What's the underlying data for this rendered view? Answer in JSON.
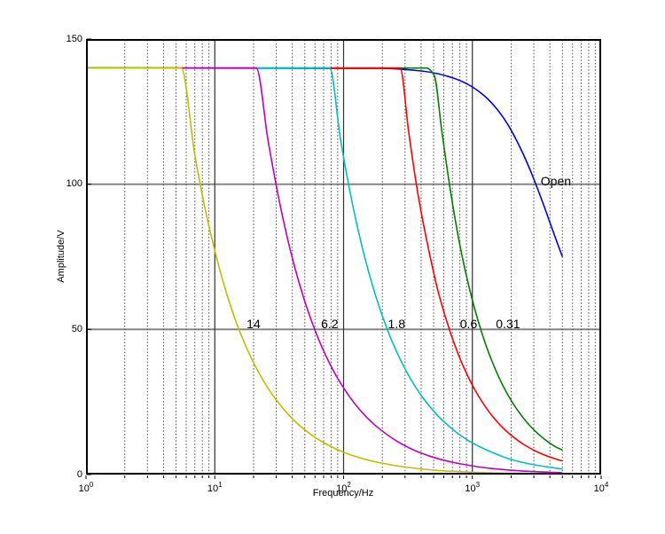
{
  "figure": {
    "background": "#ffffff",
    "frame_color": "#000000",
    "tick_color": "#000000"
  },
  "chart_data": {
    "type": "line",
    "title": "",
    "xlabel": "Frequency/Hz",
    "ylabel": "Amplitude/V",
    "x_scale": "log10",
    "xlim": [
      1,
      10000
    ],
    "ylim": [
      0,
      150
    ],
    "yticks": [
      0,
      50,
      100,
      150
    ],
    "xticks": [
      {
        "base": "10",
        "exp": "0"
      },
      {
        "base": "10",
        "exp": "1"
      },
      {
        "base": "10",
        "exp": "2"
      },
      {
        "base": "10",
        "exp": "3"
      },
      {
        "base": "10",
        "exp": "4"
      }
    ],
    "grid": {
      "x_minor_multiples": [
        2,
        3,
        4,
        5,
        6,
        7,
        8,
        9
      ],
      "x_major_lines": [
        10,
        100,
        1000
      ],
      "y_major_lines": [
        50,
        100
      ],
      "minor_color": "#4a4a4a",
      "major_color": "#303030",
      "y_line_color": "#7f7f7f"
    },
    "legend": "none",
    "series": [
      {
        "name": "Open",
        "color": "#0000ee",
        "label": {
          "text": "Open",
          "f": 4450,
          "A": 101
        },
        "points": [
          [
            1,
            140
          ],
          [
            200,
            139.9
          ],
          [
            400,
            139
          ],
          [
            520,
            138.2
          ],
          [
            650,
            137.1
          ],
          [
            800,
            135.7
          ],
          [
            1000,
            133.5
          ],
          [
            1250,
            130.3
          ],
          [
            1550,
            125.9
          ],
          [
            1900,
            120.3
          ],
          [
            2350,
            112.6
          ],
          [
            2900,
            103.4
          ],
          [
            3550,
            93.2
          ],
          [
            4300,
            82.9
          ],
          [
            5000,
            75
          ]
        ]
      },
      {
        "name": "0.31",
        "color": "#007f00",
        "label": {
          "text": "0.31",
          "f": 1890,
          "A": 52
        },
        "points": [
          [
            1,
            140
          ],
          [
            440,
            140
          ],
          [
            505,
            137.5
          ],
          [
            580,
            118
          ],
          [
            680,
            97
          ],
          [
            800,
            79
          ],
          [
            950,
            64
          ],
          [
            1150,
            50.6
          ],
          [
            1400,
            39.7
          ],
          [
            1750,
            30.1
          ],
          [
            2200,
            22.7
          ],
          [
            2800,
            16.8
          ],
          [
            3600,
            12.3
          ],
          [
            4500,
            9.4
          ],
          [
            5000,
            8.5
          ]
        ]
      },
      {
        "name": "0.6",
        "color": "#ff0000",
        "label": {
          "text": "0.6",
          "f": 935,
          "A": 52
        },
        "points": [
          [
            1,
            140
          ],
          [
            275,
            140
          ],
          [
            320,
            118
          ],
          [
            380,
            96
          ],
          [
            450,
            79
          ],
          [
            550,
            62
          ],
          [
            680,
            48.5
          ],
          [
            850,
            37.3
          ],
          [
            1100,
            27.5
          ],
          [
            1450,
            19.8
          ],
          [
            1900,
            14.4
          ],
          [
            2500,
            10.4
          ],
          [
            3300,
            7.5
          ],
          [
            4200,
            5.7
          ],
          [
            5000,
            4.7
          ]
        ]
      },
      {
        "name": "1.8",
        "color": "#00bfbf",
        "label": {
          "text": "1.8",
          "f": 258,
          "A": 52
        },
        "points": [
          [
            1,
            140
          ],
          [
            78,
            140
          ],
          [
            95,
            114.9
          ],
          [
            120,
            91
          ],
          [
            150,
            72.8
          ],
          [
            190,
            57.5
          ],
          [
            240,
            45.5
          ],
          [
            310,
            35.2
          ],
          [
            400,
            27.3
          ],
          [
            550,
            19.9
          ],
          [
            750,
            14.6
          ],
          [
            1000,
            10.9
          ],
          [
            1400,
            7.8
          ],
          [
            2000,
            5.2
          ],
          [
            3000,
            3.4
          ],
          [
            5000,
            1.9
          ]
        ]
      },
      {
        "name": "6.2",
        "color": "#bf00bf",
        "label": {
          "text": "6.2",
          "f": 78,
          "A": 52
        },
        "points": [
          [
            1,
            140
          ],
          [
            21,
            140
          ],
          [
            26,
            114.7
          ],
          [
            33,
            90.4
          ],
          [
            42,
            71
          ],
          [
            55,
            54.2
          ],
          [
            72,
            41.4
          ],
          [
            95,
            31.4
          ],
          [
            130,
            22.9
          ],
          [
            180,
            16.6
          ],
          [
            260,
            11.5
          ],
          [
            380,
            7.8
          ],
          [
            560,
            5.3
          ],
          [
            850,
            3.5
          ],
          [
            1400,
            2.1
          ],
          [
            2500,
            1.2
          ],
          [
            5000,
            0.6
          ]
        ]
      },
      {
        "name": "14",
        "color": "#bfbf00",
        "label": {
          "text": "14",
          "f": 20,
          "A": 52
        },
        "points": [
          [
            1,
            140
          ],
          [
            5.5,
            140
          ],
          [
            7,
            110
          ],
          [
            9,
            85.6
          ],
          [
            12,
            64.2
          ],
          [
            16,
            48.1
          ],
          [
            22,
            35
          ],
          [
            30,
            25.7
          ],
          [
            45,
            17.1
          ],
          [
            70,
            11
          ],
          [
            110,
            7
          ],
          [
            180,
            4.3
          ],
          [
            300,
            2.6
          ],
          [
            550,
            1.4
          ],
          [
            1000,
            0.8
          ],
          [
            2000,
            0.4
          ],
          [
            5000,
            0.2
          ]
        ]
      }
    ]
  }
}
